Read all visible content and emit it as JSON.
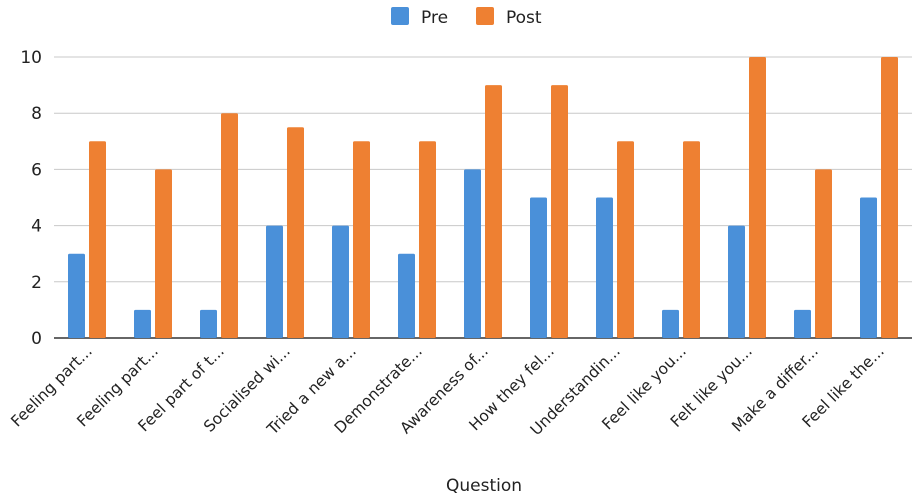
{
  "chart_data": {
    "type": "bar",
    "title": "",
    "xlabel": "Question",
    "ylabel": "",
    "ylim": [
      0,
      10
    ],
    "yticks": [
      "0",
      "2",
      "4",
      "6",
      "8",
      "10"
    ],
    "grid": true,
    "legend_position": "top-center",
    "categories": [
      "Feeling part...",
      "Feeling part...",
      "Feel part of t...",
      "Socialised wi...",
      "Tried a new a...",
      "Demonstrate...",
      "Awareness of...",
      "How they fel...",
      "Understandin...",
      "Feel like you...",
      "Felt like you...",
      "Make a differ...",
      "Feel like the..."
    ],
    "series": [
      {
        "name": "Pre",
        "color": "#4a90d9",
        "values": [
          3,
          1,
          1,
          4,
          4,
          3,
          6,
          5,
          5,
          1,
          4,
          1,
          5
        ]
      },
      {
        "name": "Post",
        "color": "#ee8032",
        "values": [
          7,
          6,
          8,
          7.5,
          7,
          7,
          9,
          9,
          7,
          7,
          10,
          6,
          10
        ]
      }
    ]
  }
}
